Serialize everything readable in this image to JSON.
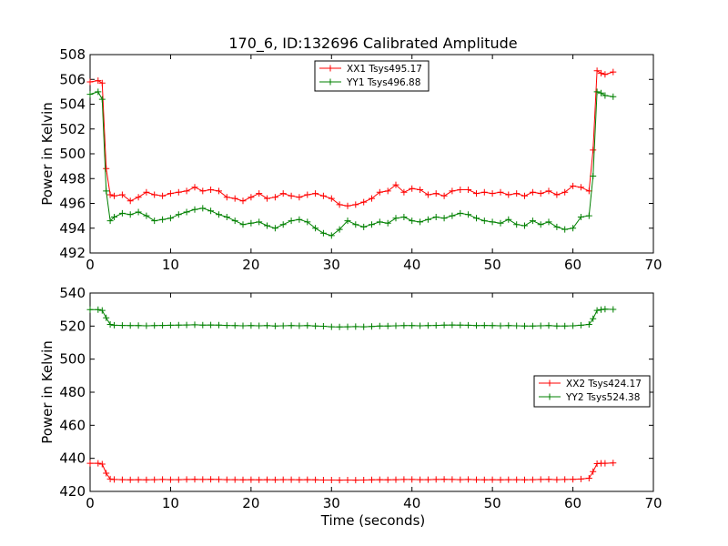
{
  "figure_title": "170_6, ID:132696 Calibrated Amplitude",
  "x_axis_label": "Time (seconds)",
  "chart_data": [
    {
      "type": "line",
      "title": "170_6, ID:132696 Calibrated Amplitude",
      "xlabel": "",
      "ylabel": "Power in Kelvin",
      "xlim": [
        0,
        70
      ],
      "ylim": [
        492,
        508
      ],
      "xticks": [
        0,
        10,
        20,
        30,
        40,
        50,
        60,
        70
      ],
      "yticks": [
        492,
        494,
        496,
        498,
        500,
        502,
        504,
        506,
        508
      ],
      "grid": false,
      "legend_position": "top-center",
      "series": [
        {
          "name": "XX1 Tsys495.17",
          "color": "#ff0000",
          "x": [
            0,
            1,
            1.5,
            2,
            2.5,
            3,
            4,
            5,
            6,
            7,
            8,
            9,
            10,
            11,
            12,
            13,
            14,
            15,
            16,
            17,
            18,
            19,
            20,
            21,
            22,
            23,
            24,
            25,
            26,
            27,
            28,
            29,
            30,
            31,
            32,
            33,
            34,
            35,
            36,
            37,
            38,
            39,
            40,
            41,
            42,
            43,
            44,
            45,
            46,
            47,
            48,
            49,
            50,
            51,
            52,
            53,
            54,
            55,
            56,
            57,
            58,
            59,
            60,
            61,
            62,
            62.5,
            63,
            63.5,
            64,
            65
          ],
          "y": [
            505.8,
            505.9,
            505.7,
            498.8,
            496.7,
            496.6,
            496.7,
            496.2,
            496.5,
            496.9,
            496.7,
            496.6,
            496.8,
            496.9,
            497.0,
            497.3,
            497.0,
            497.1,
            497.0,
            496.5,
            496.4,
            496.2,
            496.5,
            496.8,
            496.4,
            496.5,
            496.8,
            496.6,
            496.5,
            496.7,
            496.8,
            496.6,
            496.4,
            495.9,
            495.8,
            495.9,
            496.1,
            496.4,
            496.9,
            497.0,
            497.5,
            496.9,
            497.2,
            497.1,
            496.7,
            496.8,
            496.6,
            497.0,
            497.1,
            497.1,
            496.8,
            496.9,
            496.8,
            496.9,
            496.7,
            496.8,
            496.6,
            496.9,
            496.8,
            497.0,
            496.7,
            496.9,
            497.4,
            497.3,
            497.0,
            500.3,
            506.7,
            506.5,
            506.4,
            506.6
          ]
        },
        {
          "name": "YY1 Tsys496.88",
          "color": "#008000",
          "x": [
            0,
            1,
            1.5,
            2,
            2.5,
            3,
            4,
            5,
            6,
            7,
            8,
            9,
            10,
            11,
            12,
            13,
            14,
            15,
            16,
            17,
            18,
            19,
            20,
            21,
            22,
            23,
            24,
            25,
            26,
            27,
            28,
            29,
            30,
            31,
            32,
            33,
            34,
            35,
            36,
            37,
            38,
            39,
            40,
            41,
            42,
            43,
            44,
            45,
            46,
            47,
            48,
            49,
            50,
            51,
            52,
            53,
            54,
            55,
            56,
            57,
            58,
            59,
            60,
            61,
            62,
            62.5,
            63,
            63.5,
            64,
            65
          ],
          "y": [
            504.8,
            505.0,
            504.4,
            497.0,
            494.6,
            494.9,
            495.2,
            495.1,
            495.3,
            495.0,
            494.6,
            494.7,
            494.8,
            495.1,
            495.3,
            495.5,
            495.6,
            495.4,
            495.1,
            494.9,
            494.6,
            494.3,
            494.4,
            494.5,
            494.2,
            494.0,
            494.3,
            494.6,
            494.7,
            494.5,
            494.0,
            493.6,
            493.4,
            493.9,
            494.6,
            494.3,
            494.1,
            494.3,
            494.5,
            494.4,
            494.8,
            494.9,
            494.6,
            494.5,
            494.7,
            494.9,
            494.8,
            495.0,
            495.2,
            495.1,
            494.8,
            494.6,
            494.5,
            494.4,
            494.7,
            494.3,
            494.2,
            494.6,
            494.3,
            494.5,
            494.1,
            493.9,
            494.0,
            494.9,
            495.0,
            498.2,
            505.0,
            504.9,
            504.7,
            504.6
          ]
        }
      ]
    },
    {
      "type": "line",
      "title": "",
      "xlabel": "Time (seconds)",
      "ylabel": "Power in Kelvin",
      "xlim": [
        0,
        70
      ],
      "ylim": [
        420,
        540
      ],
      "xticks": [
        0,
        10,
        20,
        30,
        40,
        50,
        60,
        70
      ],
      "yticks": [
        420,
        440,
        460,
        480,
        500,
        520,
        540
      ],
      "grid": false,
      "legend_position": "center-right",
      "series": [
        {
          "name": "XX2 Tsys424.17",
          "color": "#ff0000",
          "x": [
            0,
            1,
            1.5,
            2,
            2.5,
            3,
            4,
            5,
            6,
            7,
            8,
            9,
            10,
            11,
            12,
            13,
            14,
            15,
            16,
            17,
            18,
            19,
            20,
            21,
            22,
            23,
            24,
            25,
            26,
            27,
            28,
            29,
            30,
            31,
            32,
            33,
            34,
            35,
            36,
            37,
            38,
            39,
            40,
            41,
            42,
            43,
            44,
            45,
            46,
            47,
            48,
            49,
            50,
            51,
            52,
            53,
            54,
            55,
            56,
            57,
            58,
            59,
            60,
            61,
            62,
            62.5,
            63,
            63.5,
            64,
            65
          ],
          "y": [
            437,
            437,
            436.5,
            431,
            427.5,
            427.2,
            427.1,
            427.0,
            427.1,
            427.0,
            427.1,
            427.2,
            427.1,
            427.1,
            427.2,
            427.3,
            427.2,
            427.3,
            427.2,
            427.1,
            427.1,
            427.0,
            427.1,
            427.0,
            427.1,
            427.0,
            427.1,
            427.1,
            427.0,
            427.1,
            427.0,
            426.9,
            426.9,
            426.8,
            426.9,
            426.8,
            426.9,
            427.0,
            427.1,
            427.0,
            427.1,
            427.2,
            427.2,
            427.1,
            427.1,
            427.2,
            427.3,
            427.2,
            427.1,
            427.2,
            427.1,
            427.0,
            427.1,
            427.0,
            427.1,
            427.1,
            427.0,
            427.1,
            427.2,
            427.3,
            427.1,
            427.2,
            427.3,
            427.5,
            428,
            432,
            436.8,
            437,
            437,
            437.2
          ]
        },
        {
          "name": "YY2 Tsys524.38",
          "color": "#008000",
          "x": [
            0,
            1,
            1.5,
            2,
            2.5,
            3,
            4,
            5,
            6,
            7,
            8,
            9,
            10,
            11,
            12,
            13,
            14,
            15,
            16,
            17,
            18,
            19,
            20,
            21,
            22,
            23,
            24,
            25,
            26,
            27,
            28,
            29,
            30,
            31,
            32,
            33,
            34,
            35,
            36,
            37,
            38,
            39,
            40,
            41,
            42,
            43,
            44,
            45,
            46,
            47,
            48,
            49,
            50,
            51,
            52,
            53,
            54,
            55,
            56,
            57,
            58,
            59,
            60,
            61,
            62,
            62.5,
            63,
            63.5,
            64,
            65
          ],
          "y": [
            530,
            530,
            529.5,
            525,
            521,
            520.5,
            520.4,
            520.3,
            520.3,
            520.2,
            520.3,
            520.4,
            520.5,
            520.6,
            520.7,
            520.8,
            520.6,
            520.7,
            520.6,
            520.4,
            520.3,
            520.2,
            520.3,
            520.2,
            520.3,
            520.1,
            520.2,
            520.3,
            520.2,
            520.3,
            520.1,
            519.9,
            519.6,
            519.5,
            519.6,
            519.7,
            519.6,
            519.8,
            520.0,
            520.1,
            520.2,
            520.3,
            520.3,
            520.2,
            520.3,
            520.4,
            520.6,
            520.7,
            520.6,
            520.5,
            520.3,
            520.4,
            520.3,
            520.2,
            520.3,
            520.2,
            520.1,
            520.0,
            520.2,
            520.3,
            520.1,
            520.0,
            520.2,
            520.5,
            521,
            524.5,
            529.5,
            530,
            530.2,
            530.1
          ]
        }
      ]
    }
  ]
}
